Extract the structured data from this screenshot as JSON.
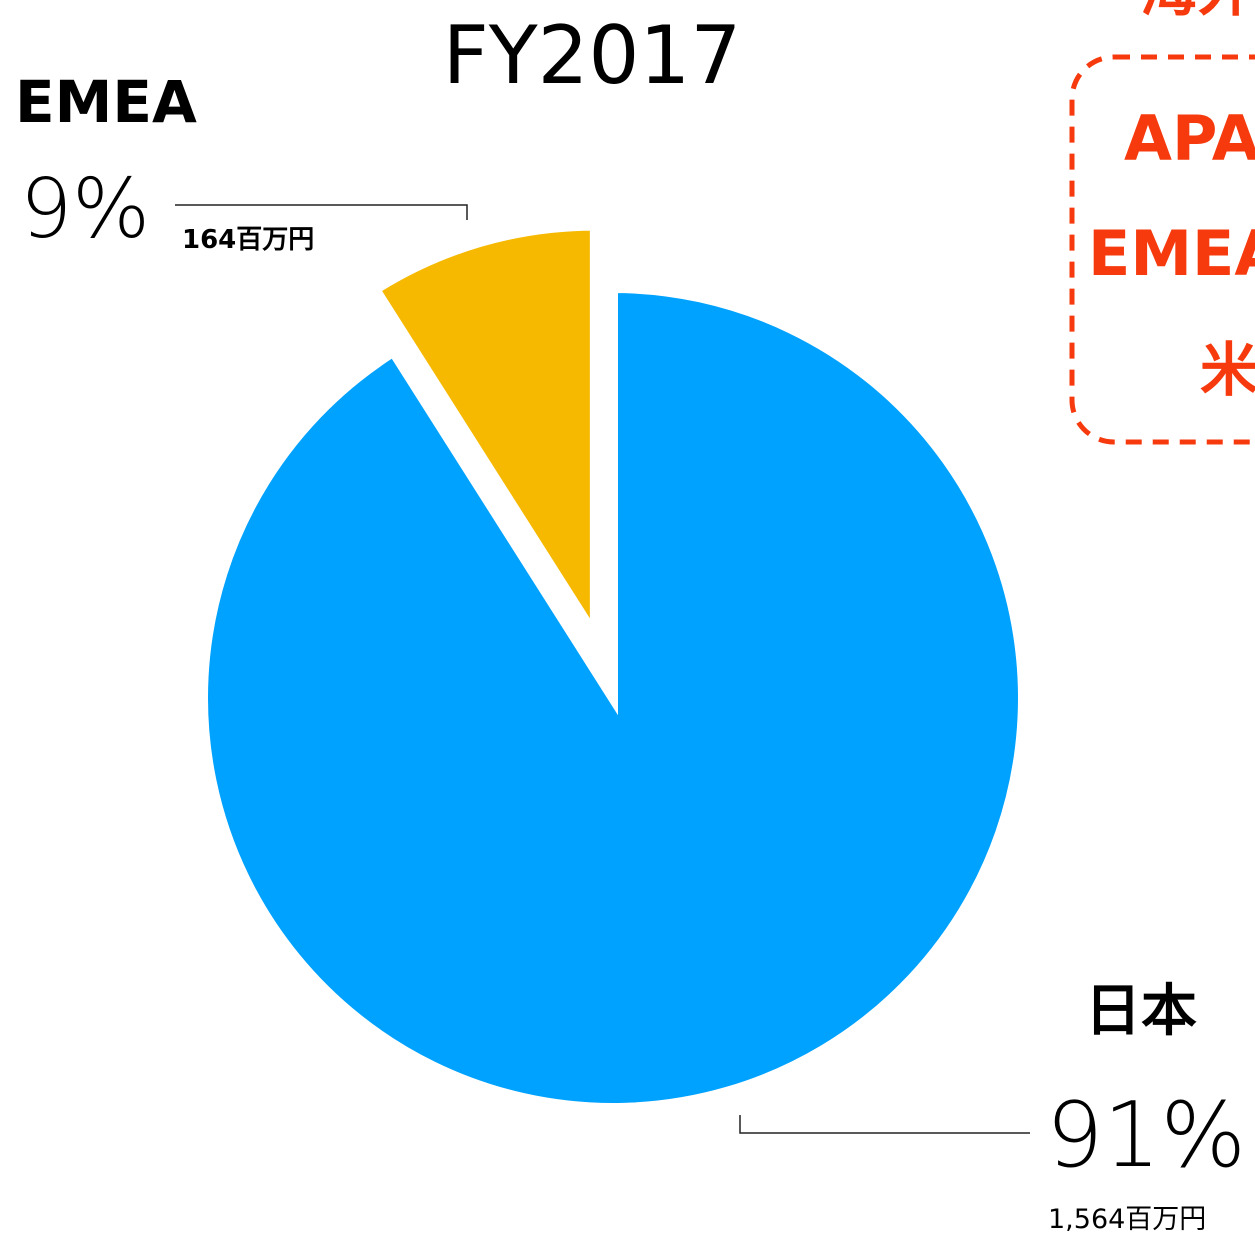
{
  "chart_data": {
    "type": "pie",
    "title": "FY2017",
    "categories": [
      "日本",
      "EMEA"
    ],
    "values": [
      91,
      9
    ],
    "value_labels": [
      "91%",
      "9%"
    ],
    "amount_labels": [
      "1,564百万円",
      "164百万円"
    ],
    "colors": [
      "#00a2ff",
      "#f6b900"
    ],
    "explode": [
      false,
      true
    ],
    "annotation_box": {
      "color": "#f63a0e",
      "lines": [
        "海外",
        "APA",
        "EMEA",
        "米"
      ]
    }
  }
}
